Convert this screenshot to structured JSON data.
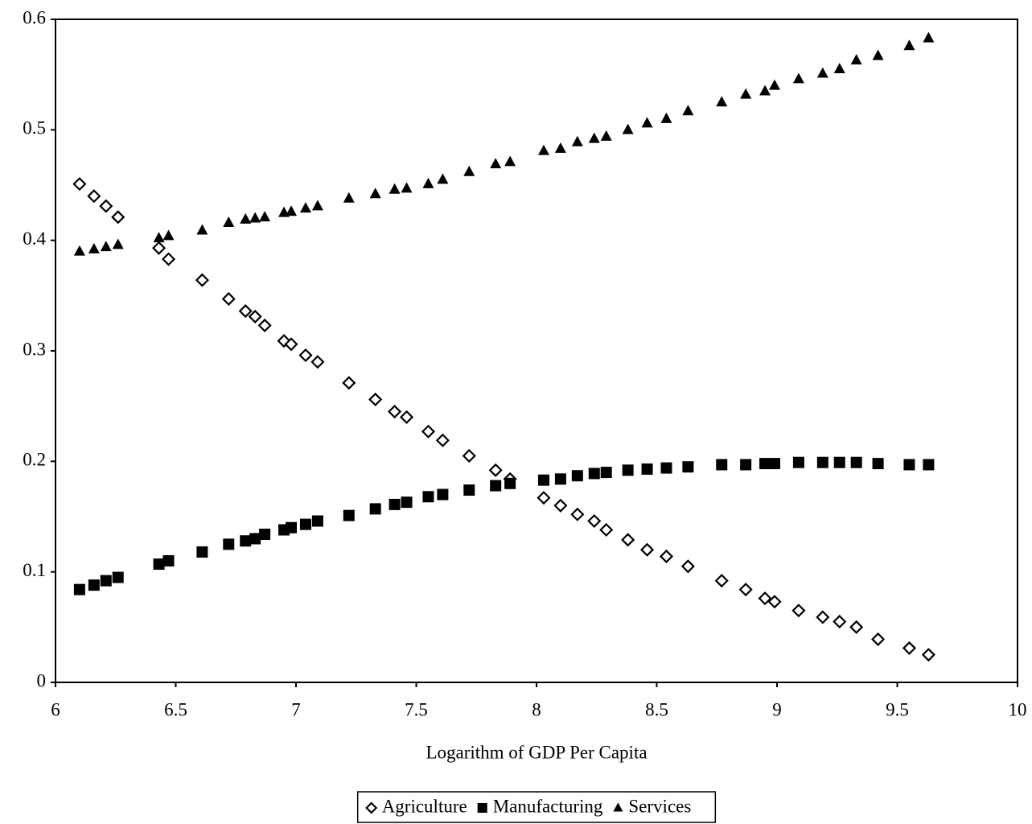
{
  "chart_data": {
    "type": "scatter",
    "xlabel": "Logarithm of GDP Per Capita",
    "x": [
      6.1,
      6.16,
      6.21,
      6.26,
      6.43,
      6.47,
      6.61,
      6.72,
      6.79,
      6.83,
      6.87,
      6.95,
      6.98,
      7.04,
      7.09,
      7.22,
      7.33,
      7.41,
      7.46,
      7.55,
      7.61,
      7.72,
      7.83,
      7.89,
      8.03,
      8.1,
      8.17,
      8.24,
      8.29,
      8.38,
      8.46,
      8.54,
      8.63,
      8.77,
      8.87,
      8.95,
      8.99,
      9.09,
      9.19,
      9.26,
      9.33,
      9.42,
      9.55,
      9.63
    ],
    "series": [
      {
        "name": "Agriculture",
        "color": "#000000",
        "marker": "diamond",
        "values": [
          0.451,
          0.44,
          0.431,
          0.421,
          0.393,
          0.383,
          0.364,
          0.347,
          0.336,
          0.331,
          0.323,
          0.309,
          0.306,
          0.296,
          0.29,
          0.271,
          0.256,
          0.245,
          0.24,
          0.227,
          0.219,
          0.205,
          0.192,
          0.184,
          0.167,
          0.16,
          0.152,
          0.146,
          0.138,
          0.129,
          0.12,
          0.114,
          0.105,
          0.092,
          0.084,
          0.076,
          0.073,
          0.065,
          0.059,
          0.055,
          0.05,
          0.039,
          0.031,
          0.025
        ]
      },
      {
        "name": "Manufacturing",
        "color": "#000000",
        "marker": "square",
        "values": [
          0.084,
          0.088,
          0.092,
          0.095,
          0.107,
          0.11,
          0.118,
          0.125,
          0.128,
          0.13,
          0.134,
          0.138,
          0.14,
          0.143,
          0.146,
          0.151,
          0.157,
          0.161,
          0.163,
          0.168,
          0.17,
          0.174,
          0.178,
          0.18,
          0.183,
          0.184,
          0.187,
          0.189,
          0.19,
          0.192,
          0.193,
          0.194,
          0.195,
          0.197,
          0.197,
          0.198,
          0.198,
          0.199,
          0.199,
          0.199,
          0.199,
          0.198,
          0.197,
          0.197
        ]
      },
      {
        "name": "Services",
        "color": "#000000",
        "marker": "triangle",
        "values": [
          0.39,
          0.392,
          0.394,
          0.396,
          0.402,
          0.404,
          0.409,
          0.416,
          0.419,
          0.42,
          0.421,
          0.425,
          0.426,
          0.429,
          0.431,
          0.438,
          0.442,
          0.446,
          0.447,
          0.451,
          0.455,
          0.462,
          0.469,
          0.471,
          0.481,
          0.483,
          0.489,
          0.492,
          0.494,
          0.5,
          0.506,
          0.51,
          0.517,
          0.525,
          0.532,
          0.535,
          0.54,
          0.546,
          0.551,
          0.555,
          0.563,
          0.567,
          0.576,
          0.583
        ]
      }
    ],
    "xlim": [
      6,
      10
    ],
    "xticks": [
      6,
      6.5,
      7,
      7.5,
      8,
      8.5,
      9,
      9.5,
      10
    ],
    "ylim": [
      0,
      0.6
    ],
    "yticks": [
      0,
      0.1,
      0.2,
      0.3,
      0.4,
      0.5,
      0.6
    ],
    "grid": false,
    "legend": "bottom"
  }
}
